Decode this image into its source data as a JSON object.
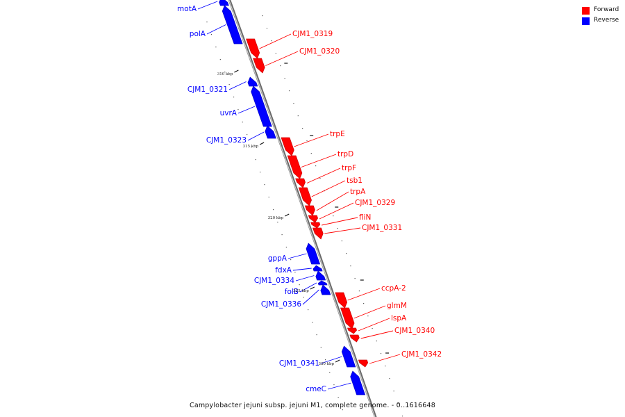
{
  "colors": {
    "forward": "#ff0000",
    "reverse": "#0000ff",
    "backbone": "#777777"
  },
  "legend": [
    {
      "label": "Forward",
      "color": "#ff0000"
    },
    {
      "label": "Reverse",
      "color": "#0000ff"
    }
  ],
  "caption": "Campylobacter jejuni subsp. jejuni M1, complete genome. - 0..1616648",
  "ticks": [
    "310 kbp",
    "315 kbp",
    "320 kbp",
    "325 kbp",
    "330 kbp"
  ],
  "genes": [
    {
      "name": "motA",
      "strand": "reverse"
    },
    {
      "name": "polA",
      "strand": "reverse"
    },
    {
      "name": "CJM1_0319",
      "strand": "forward"
    },
    {
      "name": "CJM1_0320",
      "strand": "forward"
    },
    {
      "name": "CJM1_0321",
      "strand": "reverse"
    },
    {
      "name": "uvrA",
      "strand": "reverse"
    },
    {
      "name": "CJM1_0323",
      "strand": "reverse"
    },
    {
      "name": "trpE",
      "strand": "forward"
    },
    {
      "name": "trpD",
      "strand": "forward"
    },
    {
      "name": "trpF",
      "strand": "forward"
    },
    {
      "name": "tsb1",
      "strand": "forward"
    },
    {
      "name": "trpA",
      "strand": "forward"
    },
    {
      "name": "CJM1_0329",
      "strand": "forward"
    },
    {
      "name": "fliN",
      "strand": "forward"
    },
    {
      "name": "CJM1_0331",
      "strand": "forward"
    },
    {
      "name": "gppA",
      "strand": "reverse"
    },
    {
      "name": "fdxA",
      "strand": "reverse"
    },
    {
      "name": "CJM1_0334",
      "strand": "reverse"
    },
    {
      "name": "folB",
      "strand": "reverse"
    },
    {
      "name": "CJM1_0336",
      "strand": "reverse"
    },
    {
      "name": "ccpA-2",
      "strand": "forward"
    },
    {
      "name": "glmM",
      "strand": "forward"
    },
    {
      "name": "lspA",
      "strand": "forward"
    },
    {
      "name": "CJM1_0340",
      "strand": "forward"
    },
    {
      "name": "CJM1_0341",
      "strand": "reverse"
    },
    {
      "name": "CJM1_0342",
      "strand": "forward"
    },
    {
      "name": "cmeC",
      "strand": "reverse"
    }
  ]
}
